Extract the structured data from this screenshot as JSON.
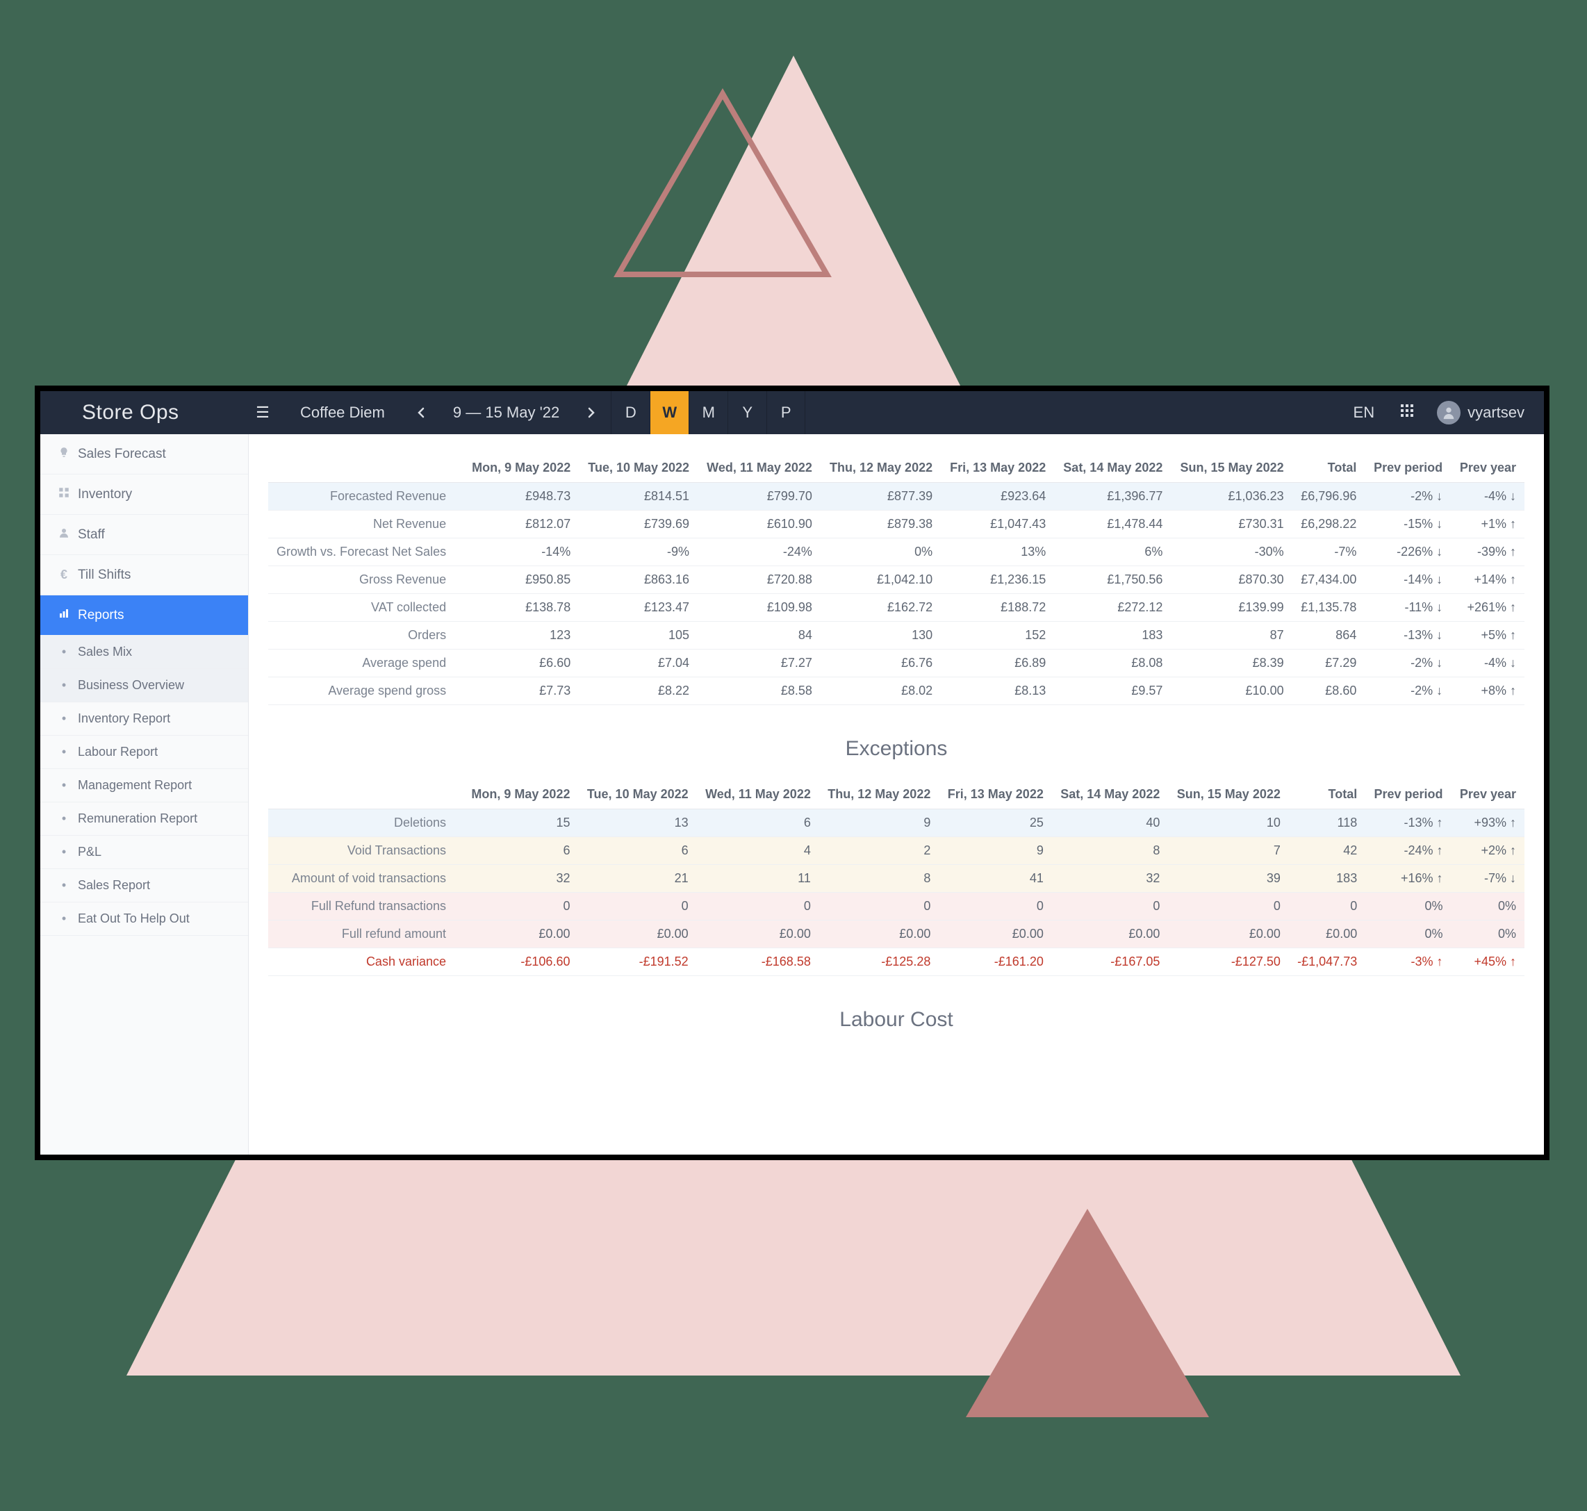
{
  "decor": {
    "bg": "#3f6653",
    "big_triangle": "#f2d6d4",
    "outline_triangle_stroke": "#bc7f7c",
    "small_triangle": "#bc7f7c"
  },
  "header": {
    "brand": "Store Ops",
    "store": "Coffee Diem",
    "date_range": "9 — 15 May '22",
    "periods": [
      "D",
      "W",
      "M",
      "Y",
      "P"
    ],
    "active_period_index": 1,
    "lang": "EN",
    "username": "vyartsev"
  },
  "sidebar": {
    "items": [
      {
        "icon": "bulb",
        "label": "Sales Forecast"
      },
      {
        "icon": "grid",
        "label": "Inventory"
      },
      {
        "icon": "user",
        "label": "Staff"
      },
      {
        "icon": "euro",
        "label": "Till Shifts"
      },
      {
        "icon": "chart",
        "label": "Reports",
        "active": true
      }
    ],
    "subitems": [
      {
        "label": "Sales Mix",
        "selected": true
      },
      {
        "label": "Business Overview",
        "selected": true
      },
      {
        "label": "Inventory Report"
      },
      {
        "label": "Labour Report"
      },
      {
        "label": "Management Report"
      },
      {
        "label": "Remuneration Report"
      },
      {
        "label": "P&L"
      },
      {
        "label": "Sales Report"
      },
      {
        "label": "Eat Out To Help Out"
      }
    ]
  },
  "tables": {
    "columns": [
      "Mon, 9 May 2022",
      "Tue, 10 May 2022",
      "Wed, 11 May 2022",
      "Thu, 12 May 2022",
      "Fri, 13 May 2022",
      "Sat, 14 May 2022",
      "Sun, 15 May 2022",
      "Total",
      "Prev period",
      "Prev year"
    ],
    "main": [
      {
        "label": "Forecasted Revenue",
        "tint": "blue",
        "cells": [
          "£948.73",
          "£814.51",
          "£799.70",
          "£877.39",
          "£923.64",
          "£1,396.77",
          "£1,036.23",
          "£6,796.96",
          "-2% ↓",
          "-4% ↓"
        ]
      },
      {
        "label": "Net Revenue",
        "cells": [
          "£812.07",
          "£739.69",
          "£610.90",
          "£879.38",
          "£1,047.43",
          "£1,478.44",
          "£730.31",
          "£6,298.22",
          "-15% ↓",
          "+1% ↑"
        ]
      },
      {
        "label": "Growth vs. Forecast Net Sales",
        "cells": [
          "-14%",
          "-9%",
          "-24%",
          "0%",
          "13%",
          "6%",
          "-30%",
          "-7%",
          "-226% ↓",
          "-39% ↑"
        ]
      },
      {
        "label": "Gross Revenue",
        "cells": [
          "£950.85",
          "£863.16",
          "£720.88",
          "£1,042.10",
          "£1,236.15",
          "£1,750.56",
          "£870.30",
          "£7,434.00",
          "-14% ↓",
          "+14% ↑"
        ]
      },
      {
        "label": "VAT collected",
        "cells": [
          "£138.78",
          "£123.47",
          "£109.98",
          "£162.72",
          "£188.72",
          "£272.12",
          "£139.99",
          "£1,135.78",
          "-11% ↓",
          "+261% ↑"
        ]
      },
      {
        "label": "Orders",
        "cells": [
          "123",
          "105",
          "84",
          "130",
          "152",
          "183",
          "87",
          "864",
          "-13% ↓",
          "+5% ↑"
        ]
      },
      {
        "label": "Average spend",
        "cells": [
          "£6.60",
          "£7.04",
          "£7.27",
          "£6.76",
          "£6.89",
          "£8.08",
          "£8.39",
          "£7.29",
          "-2% ↓",
          "-4% ↓"
        ]
      },
      {
        "label": "Average spend gross",
        "cells": [
          "£7.73",
          "£8.22",
          "£8.58",
          "£8.02",
          "£8.13",
          "£9.57",
          "£10.00",
          "£8.60",
          "-2% ↓",
          "+8% ↑"
        ]
      }
    ],
    "exceptions_title": "Exceptions",
    "exceptions": [
      {
        "label": "Deletions",
        "tint": "blue",
        "cells": [
          "15",
          "13",
          "6",
          "9",
          "25",
          "40",
          "10",
          "118",
          "-13% ↑",
          "+93% ↑"
        ]
      },
      {
        "label": "Void Transactions",
        "tint": "cream",
        "cells": [
          "6",
          "6",
          "4",
          "2",
          "9",
          "8",
          "7",
          "42",
          "-24% ↑",
          "+2% ↑"
        ]
      },
      {
        "label": "Amount of void transactions",
        "tint": "cream",
        "cells": [
          "32",
          "21",
          "11",
          "8",
          "41",
          "32",
          "39",
          "183",
          "+16% ↑",
          "-7% ↓"
        ]
      },
      {
        "label": "Full Refund transactions",
        "tint": "pink",
        "cells": [
          "0",
          "0",
          "0",
          "0",
          "0",
          "0",
          "0",
          "0",
          "0%",
          "0%"
        ]
      },
      {
        "label": "Full refund amount",
        "tint": "pink",
        "cells": [
          "£0.00",
          "£0.00",
          "£0.00",
          "£0.00",
          "£0.00",
          "£0.00",
          "£0.00",
          "£0.00",
          "0%",
          "0%"
        ]
      },
      {
        "label": "Cash variance",
        "danger": true,
        "cells": [
          "-£106.60",
          "-£191.52",
          "-£168.58",
          "-£125.28",
          "-£161.20",
          "-£167.05",
          "-£127.50",
          "-£1,047.73",
          "-3% ↑",
          "+45% ↑"
        ]
      }
    ],
    "labour_title": "Labour Cost"
  },
  "colors": {
    "titlebar": "#232c3d",
    "accent": "#f5a623",
    "active_nav": "#3b82f6",
    "tint_blue": "#eef5fb",
    "tint_cream": "#fbf6ea",
    "tint_pink": "#fbeeee",
    "danger": "#c0392b",
    "border": "#e6e8ec"
  }
}
